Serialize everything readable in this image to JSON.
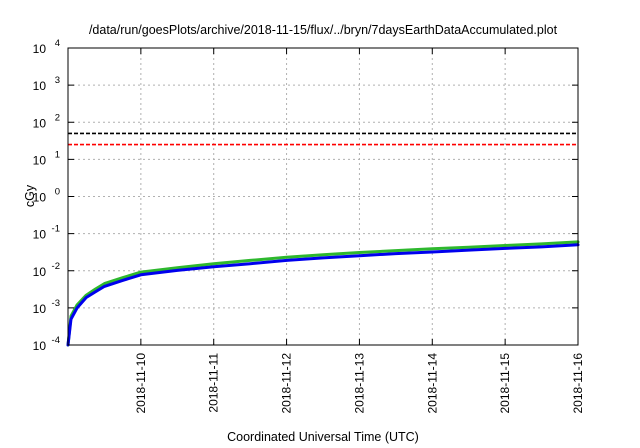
{
  "chart_data": {
    "type": "line",
    "title": "/data/run/goesPlots/archive/2018-11-15/flux/../bryn/7daysEarthDataAccumulated.plot",
    "xlabel": "Coordinated Universal Time (UTC)",
    "ylabel": "cGy",
    "yscale": "log",
    "ylim": [
      0.0001,
      10000
    ],
    "xlim": [
      "2018-11-09T00:00",
      "2018-11-16T00:00"
    ],
    "grid": true,
    "x_ticks": [
      "2018-11-10",
      "2018-11-11",
      "2018-11-12",
      "2018-11-13",
      "2018-11-14",
      "2018-11-15",
      "2018-11-16"
    ],
    "y_ticks": [
      {
        "value": 0.0001,
        "base": "10",
        "exp": "-4"
      },
      {
        "value": 0.001,
        "base": "10",
        "exp": "-3"
      },
      {
        "value": 0.01,
        "base": "10",
        "exp": "-2"
      },
      {
        "value": 0.1,
        "base": "10",
        "exp": "-1"
      },
      {
        "value": 1,
        "base": "10",
        "exp": "0"
      },
      {
        "value": 10,
        "base": "10",
        "exp": "1"
      },
      {
        "value": 100,
        "base": "10",
        "exp": "2"
      },
      {
        "value": 1000,
        "base": "10",
        "exp": "3"
      },
      {
        "value": 10000,
        "base": "10",
        "exp": "4"
      }
    ],
    "reference_lines": [
      {
        "y": 50,
        "color": "#000000",
        "style": "dashed"
      },
      {
        "y": 25,
        "color": "#ff0000",
        "style": "dashed"
      }
    ],
    "series": [
      {
        "color": "#2eb82e",
        "x": [
          "2018-11-09T00:00",
          "2018-11-09T01:00",
          "2018-11-09T03:00",
          "2018-11-09T06:00",
          "2018-11-09T09:00",
          "2018-11-09T12:00",
          "2018-11-09T18:00",
          "2018-11-10T00:00",
          "2018-11-10T12:00",
          "2018-11-11T00:00",
          "2018-11-11T12:00",
          "2018-11-12T00:00",
          "2018-11-12T12:00",
          "2018-11-13T00:00",
          "2018-11-13T12:00",
          "2018-11-14T00:00",
          "2018-11-14T12:00",
          "2018-11-15T00:00",
          "2018-11-15T12:00",
          "2018-11-16T00:00"
        ],
        "y": [
          0.0001,
          0.0006,
          0.0012,
          0.0022,
          0.0032,
          0.0045,
          0.0065,
          0.0092,
          0.012,
          0.0155,
          0.019,
          0.023,
          0.027,
          0.031,
          0.035,
          0.039,
          0.043,
          0.048,
          0.053,
          0.06
        ]
      },
      {
        "color": "#0000ee",
        "x": [
          "2018-11-09T00:00",
          "2018-11-09T01:00",
          "2018-11-09T03:00",
          "2018-11-09T06:00",
          "2018-11-09T09:00",
          "2018-11-09T12:00",
          "2018-11-09T18:00",
          "2018-11-10T00:00",
          "2018-11-10T12:00",
          "2018-11-11T00:00",
          "2018-11-11T12:00",
          "2018-11-12T00:00",
          "2018-11-12T12:00",
          "2018-11-13T00:00",
          "2018-11-13T12:00",
          "2018-11-14T00:00",
          "2018-11-14T12:00",
          "2018-11-15T00:00",
          "2018-11-15T12:00",
          "2018-11-16T00:00"
        ],
        "y": [
          0.0001,
          0.0005,
          0.001,
          0.0019,
          0.0027,
          0.0038,
          0.0055,
          0.0078,
          0.0102,
          0.0128,
          0.0155,
          0.019,
          0.0222,
          0.0255,
          0.029,
          0.032,
          0.036,
          0.04,
          0.044,
          0.05
        ]
      }
    ]
  }
}
